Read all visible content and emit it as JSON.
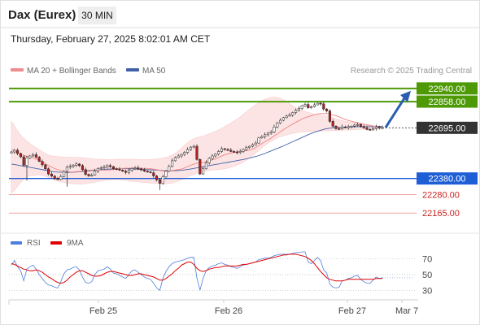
{
  "header": {
    "instrument": "Dax (Eurex)",
    "timeframe": "30 MIN",
    "datetime": "Thursday, February 27, 2025 8:02:01 AM CET"
  },
  "legend": {
    "ma20": "MA 20 + Bollinger Bands",
    "ma50": "MA 50",
    "credit": "Research © 2025 Trading Central"
  },
  "colors": {
    "ma20": "#f08c8c",
    "ma50": "#4060a8",
    "bollinger_fill": "#fde2e2",
    "candle_up": "#ffffff",
    "candle_down": "#b22222",
    "resistance": "#4e9a06",
    "pivot": "#1f5fd6",
    "support": "#f4a3a3",
    "current": "#333333",
    "rsi": "#4f7fdc",
    "rsi_ma": "#e00000",
    "arrow": "#2a5db0"
  },
  "chart_data": [
    {
      "type": "candlestick",
      "title": "Dax (Eurex)",
      "timeframe": "30 MIN",
      "x_ticks": [
        "Feb 25",
        "Feb 26",
        "Feb 27",
        "Mar 7"
      ],
      "y_range": [
        22060,
        23020
      ],
      "levels": [
        {
          "label": "22940.00",
          "value": 22940,
          "kind": "resistance"
        },
        {
          "label": "22858.00",
          "value": 22858,
          "kind": "resistance"
        },
        {
          "label": "22695.00",
          "value": 22695,
          "kind": "current"
        },
        {
          "label": "22380.00",
          "value": 22380,
          "kind": "pivot"
        },
        {
          "label": "22280.00",
          "value": 22280,
          "kind": "support"
        },
        {
          "label": "22165.00",
          "value": 22165,
          "kind": "support"
        }
      ],
      "close": [
        22545,
        22555,
        22535,
        22515,
        22462,
        22508,
        22520,
        22528,
        22512,
        22486,
        22465,
        22440,
        22408,
        22395,
        22380,
        22374,
        22392,
        22424,
        22450,
        22455,
        22462,
        22470,
        22460,
        22435,
        22405,
        22396,
        22402,
        22426,
        22442,
        22446,
        22450,
        22460,
        22454,
        22440,
        22438,
        22432,
        22425,
        22418,
        22430,
        22442,
        22446,
        22440,
        22433,
        22426,
        22420,
        22415,
        22396,
        22372,
        22350,
        22390,
        22425,
        22455,
        22490,
        22510,
        22520,
        22530,
        22542,
        22560,
        22575,
        22580,
        22498,
        22408,
        22440,
        22478,
        22505,
        22520,
        22532,
        22548,
        22565,
        22560,
        22556,
        22548,
        22545,
        22542,
        22548,
        22560,
        22572,
        22580,
        22590,
        22600,
        22632,
        22640,
        22652,
        22662,
        22670,
        22700,
        22725,
        22742,
        22758,
        22768,
        22775,
        22790,
        22805,
        22815,
        22832,
        22840,
        22820,
        22826,
        22838,
        22848,
        22844,
        22812,
        22800,
        22735,
        22705,
        22690,
        22688,
        22700,
        22696,
        22702,
        22705,
        22712,
        22716,
        22704,
        22695,
        22685,
        22682,
        22690,
        22700,
        22695,
        22697
      ],
      "ma20": [
        22560,
        22548,
        22537,
        22528,
        22520,
        22515,
        22508,
        22500,
        22492,
        22480,
        22465,
        22453,
        22443,
        22435,
        22428,
        22423,
        22420,
        22420,
        22422,
        22424,
        22427,
        22430,
        22432,
        22433,
        22433,
        22432,
        22432,
        22432,
        22434,
        22437,
        22440,
        22442,
        22444,
        22444,
        22444,
        22443,
        22443,
        22442,
        22442,
        22441,
        22438,
        22434,
        22428,
        22425,
        22426,
        22430,
        22433,
        22436,
        22440,
        22450,
        22460,
        22468,
        22475,
        22478,
        22480,
        22486,
        22494,
        22500,
        22510,
        22520,
        22530,
        22535,
        22540,
        22544,
        22548,
        22550,
        22554,
        22558,
        22566,
        22580,
        22594,
        22608,
        22620,
        22634,
        22650,
        22664,
        22680,
        22694,
        22708,
        22720,
        22732,
        22744,
        22755,
        22763,
        22770,
        22776,
        22782,
        22784,
        22784,
        22782,
        22776,
        22770,
        22762,
        22752,
        22744,
        22738,
        22732,
        22727,
        22722,
        22717,
        22712,
        22707,
        22702,
        22698,
        22695
      ],
      "bb_upper": [
        22735,
        22700,
        22665,
        22640,
        22620,
        22600,
        22585,
        22570,
        22555,
        22542,
        22530,
        22522,
        22518,
        22516,
        22514,
        22512,
        22512,
        22512,
        22512,
        22510,
        22508,
        22506,
        22504,
        22502,
        22500,
        22499,
        22498,
        22497,
        22497,
        22498,
        22499,
        22500,
        22500,
        22500,
        22499,
        22498,
        22496,
        22496,
        22497,
        22498,
        22500,
        22502,
        22505,
        22510,
        22515,
        22524,
        22538,
        22555,
        22575,
        22595,
        22612,
        22626,
        22634,
        22640,
        22646,
        22654,
        22662,
        22670,
        22680,
        22692,
        22705,
        22718,
        22732,
        22746,
        22760,
        22778,
        22796,
        22814,
        22830,
        22846,
        22860,
        22872,
        22880,
        22885,
        22885,
        22880,
        22872,
        22860,
        22845,
        22830,
        22818,
        22808,
        22800,
        22792,
        22786,
        22780,
        22776,
        22772,
        22769,
        22765,
        22760,
        22752,
        22745,
        22738,
        22733,
        22730,
        22727,
        22724,
        22721,
        22718,
        22715,
        22712,
        22709,
        22705,
        22700
      ],
      "bb_lower": [
        22290,
        22310,
        22340,
        22365,
        22385,
        22395,
        22400,
        22402,
        22402,
        22398,
        22390,
        22380,
        22372,
        22364,
        22358,
        22354,
        22350,
        22348,
        22346,
        22345,
        22346,
        22348,
        22352,
        22356,
        22360,
        22364,
        22367,
        22370,
        22372,
        22373,
        22373,
        22371,
        22368,
        22365,
        22362,
        22360,
        22358,
        22356,
        22354,
        22352,
        22350,
        22348,
        22346,
        22346,
        22348,
        22352,
        22358,
        22366,
        22376,
        22386,
        22396,
        22404,
        22412,
        22418,
        22424,
        22428,
        22432,
        22434,
        22436,
        22438,
        22442,
        22446,
        22452,
        22460,
        22470,
        22482,
        22496,
        22512,
        22530,
        22548,
        22566,
        22584,
        22600,
        22614,
        22626,
        22636,
        22644,
        22650,
        22656,
        22662,
        22666,
        22669,
        22671,
        22672,
        22673,
        22674,
        22675,
        22676,
        22676,
        22676,
        22677,
        22678,
        22679,
        22680,
        22681,
        22682,
        22683,
        22684,
        22685,
        22686,
        22687,
        22688,
        22689,
        22690,
        22690
      ],
      "ma50": [
        22470,
        22466,
        22462,
        22458,
        22454,
        22450,
        22446,
        22442,
        22438,
        22434,
        22430,
        22426,
        22422,
        22420,
        22418,
        22417,
        22417,
        22418,
        22420,
        22422,
        22424,
        22426,
        22428,
        22430,
        22432,
        22434,
        22436,
        22438,
        22439,
        22440,
        22441,
        22441,
        22441,
        22440,
        22439,
        22438,
        22437,
        22436,
        22435,
        22434,
        22433,
        22432,
        22430,
        22428,
        22428,
        22428,
        22429,
        22430,
        22432,
        22435,
        22438,
        22442,
        22446,
        22450,
        22454,
        22458,
        22462,
        22466,
        22470,
        22474,
        22478,
        22482,
        22486,
        22490,
        22494,
        22498,
        22503,
        22508,
        22514,
        22520,
        22527,
        22535,
        22544,
        22553,
        22562,
        22571,
        22580,
        22590,
        22600,
        22610,
        22620,
        22630,
        22640,
        22650,
        22660,
        22668,
        22675,
        22682,
        22688,
        22692,
        22695,
        22697,
        22698,
        22699,
        22700,
        22701,
        22702,
        22702,
        22702,
        22702,
        22702,
        22702,
        22703,
        22703,
        22703
      ]
    },
    {
      "type": "line",
      "title": "RSI",
      "y_ticks": [
        70,
        50,
        30
      ],
      "y_range": [
        20,
        80
      ],
      "series": [
        {
          "name": "RSI",
          "values": [
            62,
            68,
            60,
            55,
            42,
            57,
            60,
            62,
            57,
            50,
            45,
            40,
            37,
            36,
            34,
            33,
            41,
            51,
            56,
            57,
            59,
            60,
            56,
            47,
            40,
            39,
            41,
            50,
            55,
            56,
            57,
            60,
            57,
            52,
            51,
            49,
            47,
            45,
            50,
            55,
            56,
            53,
            50,
            47,
            45,
            44,
            39,
            33,
            30,
            45,
            54,
            60,
            64,
            66,
            67,
            68,
            69,
            71,
            72,
            72,
            46,
            30,
            45,
            55,
            59,
            61,
            62,
            64,
            65,
            63,
            62,
            60,
            59,
            58,
            60,
            62,
            63,
            64,
            65,
            66,
            69,
            70,
            71,
            71,
            72,
            74,
            75,
            76,
            76,
            76,
            76,
            77,
            78,
            78,
            79,
            79,
            66,
            64,
            68,
            72,
            68,
            56,
            52,
            38,
            34,
            33,
            34,
            42,
            43,
            45,
            46,
            48,
            49,
            44,
            41,
            39,
            39,
            43,
            47,
            45,
            46
          ]
        },
        {
          "name": "9MA",
          "values": [
            64,
            63,
            61,
            59,
            57,
            56,
            55,
            55,
            56,
            55,
            53,
            50,
            47,
            45,
            42,
            40,
            39,
            40,
            43,
            47,
            50,
            53,
            55,
            55,
            53,
            51,
            49,
            48,
            48,
            49,
            51,
            53,
            54,
            54,
            53,
            52,
            51,
            50,
            49,
            49,
            50,
            51,
            51,
            50,
            49,
            48,
            47,
            45,
            43,
            43,
            45,
            48,
            51,
            55,
            58,
            62,
            64,
            66,
            66,
            63,
            58,
            55,
            54,
            55,
            57,
            58,
            59,
            59,
            60,
            61,
            61,
            61,
            61,
            61,
            62,
            63,
            63,
            64,
            65,
            66,
            67,
            68,
            69,
            70,
            71,
            72,
            73,
            74,
            75,
            75,
            76,
            76,
            76,
            75,
            74,
            73,
            71,
            68,
            64,
            59,
            54,
            50,
            46,
            44,
            43,
            42,
            42,
            42,
            43,
            44,
            44,
            44,
            44,
            44,
            44,
            44,
            44,
            44,
            45,
            45,
            45
          ]
        }
      ]
    }
  ]
}
